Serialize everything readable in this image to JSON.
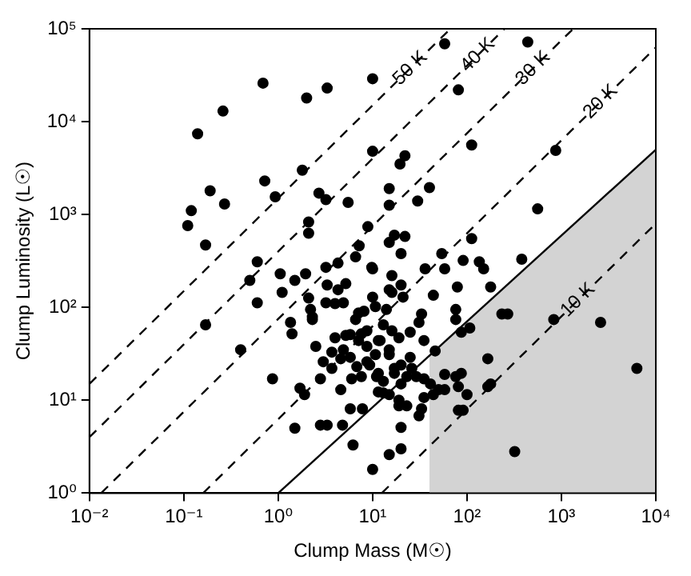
{
  "chart_data": {
    "type": "scatter",
    "xlabel": "Clump Mass (M☉)",
    "ylabel": "Clump Luminosity (L☉)",
    "log": "xy",
    "xlim": [
      0.01,
      10000
    ],
    "ylim": [
      1,
      100000
    ],
    "xticks": [
      {
        "value": 0.01,
        "label": "10⁻²"
      },
      {
        "value": 0.1,
        "label": "10⁻¹"
      },
      {
        "value": 1,
        "label": "10⁰"
      },
      {
        "value": 10,
        "label": "10¹"
      },
      {
        "value": 100,
        "label": "10²"
      },
      {
        "value": 1000,
        "label": "10³"
      },
      {
        "value": 10000,
        "label": "10⁴"
      }
    ],
    "yticks": [
      {
        "value": 1,
        "label": "10⁰"
      },
      {
        "value": 10,
        "label": "10¹"
      },
      {
        "value": 100,
        "label": "10²"
      },
      {
        "value": 1000,
        "label": "10³"
      },
      {
        "value": 10000,
        "label": "10⁴"
      },
      {
        "value": 100000,
        "label": "10⁵"
      }
    ],
    "legend": false,
    "annotations": [
      {
        "text": "50 K",
        "x": 25,
        "y": 37500
      },
      {
        "text": "40 K",
        "x": 130,
        "y": 52000
      },
      {
        "text": "30 K",
        "x": 500,
        "y": 37500
      },
      {
        "text": "20 K",
        "x": 2600,
        "y": 16400
      },
      {
        "text": "10 K",
        "x": 1500,
        "y": 120
      }
    ],
    "series": [
      {
        "type": "area",
        "color": "#d3d3d3",
        "x": [
          40,
          10000
        ],
        "values": [
          30,
          5000
        ]
      },
      {
        "type": "line",
        "color": "#000000",
        "line_style": "solid",
        "x": [
          1,
          10000
        ],
        "values": [
          1,
          5000
        ]
      },
      {
        "type": "line",
        "color": "#000000",
        "line_style": "dashed",
        "x": [
          12.5,
          10000
        ],
        "values": [
          1,
          800
        ]
      },
      {
        "type": "line",
        "color": "#000000",
        "line_style": "dashed",
        "x": [
          0.16,
          10000
        ],
        "values": [
          1,
          63000
        ]
      },
      {
        "type": "line",
        "color": "#000000",
        "line_style": "dashed",
        "x": [
          0.0133,
          1333
        ],
        "values": [
          1,
          100000
        ]
      },
      {
        "type": "line",
        "color": "#000000",
        "line_style": "dashed",
        "x": [
          0.01,
          250
        ],
        "values": [
          4,
          100000
        ]
      },
      {
        "type": "line",
        "color": "#000000",
        "line_style": "dashed",
        "x": [
          0.01,
          66.7
        ],
        "values": [
          15,
          100000
        ]
      },
      {
        "type": "scatter",
        "color": "#000000",
        "marker": "circle",
        "x": [
          0.69,
          2.0,
          3.3,
          10,
          0.26,
          0.14,
          1.8,
          0.72,
          0.93,
          0.19,
          0.27,
          0.12,
          0.11,
          0.17,
          10,
          2.7,
          3.2,
          5.5,
          2.1,
          2.1,
          8.9,
          15,
          15,
          19.5,
          22,
          0.6,
          1.05,
          1.95,
          3.2,
          4.3,
          6.6,
          7.2,
          9.8,
          16,
          17,
          20,
          22,
          58,
          440,
          81,
          112,
          870,
          40,
          30,
          560,
          15,
          112,
          54,
          91,
          135,
          150,
          36,
          58,
          380,
          0.5,
          0.6,
          0.17,
          0.4,
          0.87,
          1.1,
          1.5,
          2.1,
          2.2,
          2.3,
          1.35,
          1.4,
          3.3,
          3.2,
          4.0,
          4.9,
          4.3,
          5.2,
          4.0,
          5.8,
          7.6,
          6.6,
          7.1,
          10.7,
          8.1,
          2.5,
          3.7,
          4.9,
          3.0,
          3.7,
          4.6,
          5.8,
          6.8,
          8.7,
          10.7,
          7.6,
          11,
          6.0,
          4.6,
          2.8,
          1.7,
          1.9,
          5.8,
          7.8,
          2.8,
          3.3,
          4.8,
          1.5,
          6.2,
          10,
          13,
          16,
          20,
          16,
          14,
          12,
          15,
          17,
          13,
          20,
          19,
          20,
          20,
          15,
          8.7,
          2.3,
          10,
          10,
          15,
          21,
          33,
          31,
          44,
          79,
          178,
          234,
          270,
          830,
          76,
          107,
          87,
          76,
          8.7,
          7.1,
          5.2,
          11.5,
          19,
          25,
          35,
          15,
          25,
          9.3,
          20,
          26,
          46,
          11.5,
          17,
          23,
          13,
          29,
          35,
          41,
          58,
          76,
          87,
          166,
          81,
          58,
          50,
          44,
          35,
          100,
          178,
          166,
          15,
          19,
          23,
          33,
          11.5,
          31,
          81,
          91,
          320,
          2600,
          6300
        ],
        "values": [
          26000,
          18000,
          23000,
          29000,
          13000,
          7400,
          3000,
          2300,
          1550,
          1800,
          1300,
          1100,
          760,
          470,
          4800,
          1700,
          1450,
          1350,
          830,
          630,
          740,
          1900,
          1260,
          3500,
          4300,
          310,
          230,
          230,
          270,
          300,
          350,
          460,
          270,
          220,
          600,
          380,
          580,
          69000,
          72000,
          22000,
          5600,
          4900,
          1950,
          1400,
          1150,
          500,
          550,
          380,
          320,
          310,
          260,
          260,
          260,
          330,
          195,
          112,
          65,
          35,
          17,
          145,
          195,
          126,
          95,
          74,
          69,
          52,
          174,
          112,
          110,
          112,
          155,
          180,
          47,
          51,
          52,
          74,
          87,
          102,
          91,
          38,
          33,
          35,
          26,
          22,
          28,
          29,
          23,
          26,
          31,
          18,
          18,
          17,
          13,
          17,
          13.5,
          11.5,
          8.1,
          8.1,
          5.4,
          5.4,
          5.4,
          5.0,
          3.3,
          1.8,
          65,
          56,
          174,
          145,
          95,
          44,
          31,
          22,
          12,
          15,
          8.7,
          5.1,
          3.0,
          2.6,
          38,
          79,
          129,
          260,
          155,
          129,
          85,
          69,
          135,
          166,
          166,
          85,
          85,
          74,
          74,
          60,
          54,
          95,
          56,
          44,
          50,
          44,
          47,
          54,
          44,
          35,
          29,
          24,
          24,
          22,
          34,
          19.5,
          19.5,
          18,
          16,
          18,
          17,
          15,
          19,
          18,
          19.5,
          28,
          14,
          13,
          13,
          11.5,
          10.7,
          11.5,
          15,
          14,
          11.5,
          10,
          8.7,
          8.1,
          12.3,
          6.8,
          7.8,
          7.8,
          2.8,
          69,
          22
        ]
      }
    ]
  }
}
